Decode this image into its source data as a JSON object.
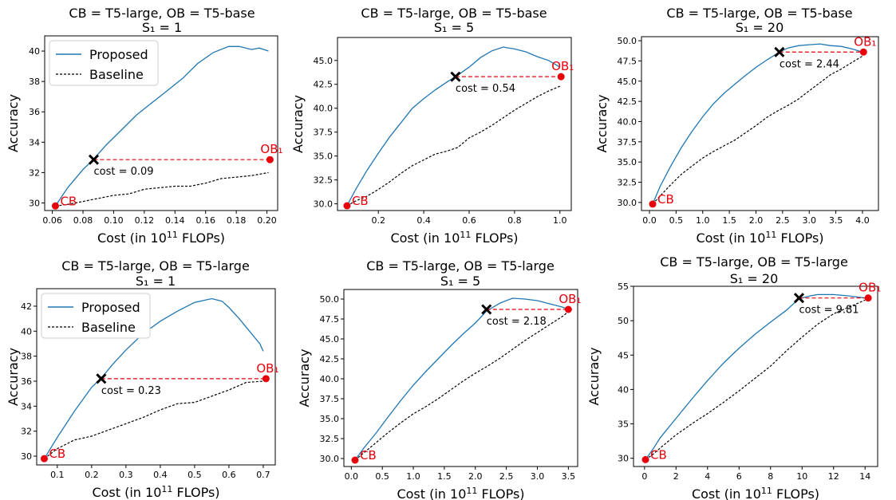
{
  "axis_text": {
    "xlabel_prefix": "Cost (in 10",
    "xlabel_exp": "11",
    "xlabel_suffix": " FLOPs)",
    "ylabel": "Accuracy"
  },
  "legend": {
    "proposed": "Proposed",
    "baseline": "Baseline"
  },
  "labels": {
    "cb": "CB",
    "ob": "OB₁"
  },
  "colors": {
    "proposed": "#1f77b4",
    "baseline": "#000000",
    "highlight": "#e8000b"
  },
  "chart_data": [
    {
      "type": "line",
      "title": "CB = T5-large, OB = T5-base",
      "subtitle": "S₁ = 1",
      "xlim": [
        0.055,
        0.207
      ],
      "ylim": [
        29.5,
        41.0
      ],
      "xticks": [
        0.06,
        0.08,
        0.1,
        0.12,
        0.14,
        0.16,
        0.18,
        0.2
      ],
      "xticklabels": [
        "0.06",
        "0.08",
        "0.10",
        "0.12",
        "0.14",
        "0.16",
        "0.18",
        "0.20"
      ],
      "yticks": [
        30,
        32,
        34,
        36,
        38,
        40
      ],
      "yticklabels": [
        "30",
        "32",
        "34",
        "36",
        "38",
        "40"
      ],
      "legend": true,
      "series": [
        {
          "name": "Proposed",
          "style": "solid",
          "x": [
            0.062,
            0.07,
            0.08,
            0.087,
            0.095,
            0.105,
            0.115,
            0.125,
            0.135,
            0.145,
            0.155,
            0.165,
            0.175,
            0.182,
            0.19,
            0.195,
            0.201
          ],
          "y": [
            29.8,
            31.0,
            32.2,
            32.9,
            33.8,
            34.8,
            35.8,
            36.6,
            37.4,
            38.2,
            39.2,
            39.9,
            40.3,
            40.3,
            40.1,
            40.2,
            40.0
          ]
        },
        {
          "name": "Baseline",
          "style": "dashed",
          "x": [
            0.062,
            0.07,
            0.08,
            0.09,
            0.1,
            0.11,
            0.12,
            0.13,
            0.14,
            0.15,
            0.16,
            0.17,
            0.18,
            0.19,
            0.201
          ],
          "y": [
            29.8,
            29.9,
            30.1,
            30.3,
            30.5,
            30.6,
            30.9,
            31.0,
            31.1,
            31.1,
            31.3,
            31.6,
            31.7,
            31.8,
            32.0
          ]
        }
      ],
      "cb": {
        "x": 0.062,
        "y": 29.8
      },
      "ob": {
        "x": 0.202,
        "y": 32.85
      },
      "cross": {
        "x": 0.087,
        "y": 32.85
      },
      "cost_label": "cost = 0.09"
    },
    {
      "type": "line",
      "title": "CB = T5-large, OB = T5-base",
      "subtitle": "S₁ = 5",
      "xlim": [
        0.02,
        1.05
      ],
      "ylim": [
        29.3,
        47.4
      ],
      "xticks": [
        0.2,
        0.4,
        0.6,
        0.8,
        1.0
      ],
      "xticklabels": [
        "0.2",
        "0.4",
        "0.6",
        "0.8",
        "1.0"
      ],
      "yticks": [
        30.0,
        32.5,
        35.0,
        37.5,
        40.0,
        42.5,
        45.0
      ],
      "yticklabels": [
        "30.0",
        "32.5",
        "35.0",
        "37.5",
        "40.0",
        "42.5",
        "45.0"
      ],
      "legend": false,
      "series": [
        {
          "name": "Proposed",
          "style": "solid",
          "x": [
            0.062,
            0.1,
            0.15,
            0.2,
            0.25,
            0.3,
            0.35,
            0.4,
            0.45,
            0.5,
            0.54,
            0.6,
            0.65,
            0.7,
            0.75,
            0.8,
            0.85,
            0.9,
            0.95,
            1.0
          ],
          "y": [
            29.8,
            31.5,
            33.5,
            35.3,
            37.0,
            38.5,
            40.0,
            41.0,
            41.9,
            42.7,
            43.3,
            44.3,
            45.3,
            46.0,
            46.4,
            46.2,
            45.9,
            45.4,
            45.0,
            44.3
          ]
        },
        {
          "name": "Baseline",
          "style": "dashed",
          "x": [
            0.062,
            0.1,
            0.15,
            0.2,
            0.25,
            0.3,
            0.35,
            0.4,
            0.45,
            0.5,
            0.55,
            0.6,
            0.65,
            0.7,
            0.75,
            0.8,
            0.85,
            0.9,
            0.95,
            1.0
          ],
          "y": [
            29.8,
            30.3,
            30.8,
            31.5,
            32.3,
            33.2,
            34.0,
            34.6,
            35.2,
            35.5,
            35.9,
            36.9,
            37.5,
            38.2,
            39.0,
            39.8,
            40.5,
            41.2,
            41.8,
            42.3
          ]
        }
      ],
      "cb": {
        "x": 0.062,
        "y": 29.8
      },
      "ob": {
        "x": 1.005,
        "y": 43.3
      },
      "cross": {
        "x": 0.54,
        "y": 43.3
      },
      "cost_label": "cost = 0.54"
    },
    {
      "type": "line",
      "title": "CB = T5-large, OB = T5-base",
      "subtitle": "S₁ = 20",
      "xlim": [
        -0.15,
        4.3
      ],
      "ylim": [
        29.0,
        50.5
      ],
      "xticks": [
        0.0,
        0.5,
        1.0,
        1.5,
        2.0,
        2.5,
        3.0,
        3.5,
        4.0
      ],
      "xticklabels": [
        "0.0",
        "0.5",
        "1.0",
        "1.5",
        "2.0",
        "2.5",
        "3.0",
        "3.5",
        "4.0"
      ],
      "yticks": [
        30.0,
        32.5,
        35.0,
        37.5,
        40.0,
        42.5,
        45.0,
        47.5,
        50.0
      ],
      "yticklabels": [
        "30.0",
        "32.5",
        "35.0",
        "37.5",
        "40.0",
        "42.5",
        "45.0",
        "47.5",
        "50.0"
      ],
      "legend": false,
      "series": [
        {
          "name": "Proposed",
          "style": "solid",
          "x": [
            0.06,
            0.2,
            0.4,
            0.6,
            0.8,
            1.0,
            1.2,
            1.4,
            1.6,
            1.8,
            2.0,
            2.2,
            2.44,
            2.6,
            2.8,
            3.0,
            3.2,
            3.4,
            3.6,
            3.8,
            4.0
          ],
          "y": [
            29.8,
            32.0,
            34.5,
            36.8,
            38.8,
            40.6,
            42.2,
            43.5,
            44.6,
            45.7,
            46.7,
            47.6,
            48.6,
            49.1,
            49.4,
            49.5,
            49.6,
            49.4,
            49.3,
            49.0,
            48.6
          ]
        },
        {
          "name": "Baseline",
          "style": "dashed",
          "x": [
            0.06,
            0.2,
            0.4,
            0.6,
            0.8,
            1.0,
            1.2,
            1.4,
            1.6,
            1.8,
            2.0,
            2.2,
            2.4,
            2.6,
            2.8,
            3.0,
            3.2,
            3.4,
            3.6,
            3.8,
            4.0
          ],
          "y": [
            29.8,
            30.8,
            32.2,
            33.5,
            34.5,
            35.5,
            36.3,
            37.0,
            37.7,
            38.6,
            39.5,
            40.5,
            41.3,
            42.0,
            42.8,
            43.8,
            44.8,
            45.8,
            46.5,
            47.3,
            48.1
          ]
        }
      ],
      "cb": {
        "x": 0.06,
        "y": 29.8
      },
      "ob": {
        "x": 4.02,
        "y": 48.6
      },
      "cross": {
        "x": 2.44,
        "y": 48.6
      },
      "cost_label": "cost = 2.44"
    },
    {
      "type": "line",
      "title": "CB = T5-large, OB = T5-large",
      "subtitle": "S₁ = 1",
      "xlim": [
        0.04,
        0.735
      ],
      "ylim": [
        29.3,
        43.4
      ],
      "xticks": [
        0.1,
        0.2,
        0.3,
        0.4,
        0.5,
        0.6,
        0.7
      ],
      "xticklabels": [
        "0.1",
        "0.2",
        "0.3",
        "0.4",
        "0.5",
        "0.6",
        "0.7"
      ],
      "yticks": [
        30,
        32,
        34,
        36,
        38,
        40,
        42
      ],
      "yticklabels": [
        "30",
        "32",
        "34",
        "36",
        "38",
        "40",
        "42"
      ],
      "legend": true,
      "series": [
        {
          "name": "Proposed",
          "style": "solid",
          "x": [
            0.062,
            0.1,
            0.15,
            0.2,
            0.23,
            0.26,
            0.3,
            0.35,
            0.4,
            0.45,
            0.5,
            0.55,
            0.58,
            0.6,
            0.63,
            0.66,
            0.69,
            0.7
          ],
          "y": [
            29.8,
            31.5,
            33.6,
            35.5,
            36.3,
            37.3,
            38.5,
            39.8,
            40.8,
            41.6,
            42.3,
            42.6,
            42.4,
            41.9,
            41.0,
            40.0,
            39.0,
            38.4
          ]
        },
        {
          "name": "Baseline",
          "style": "dashed",
          "x": [
            0.062,
            0.1,
            0.15,
            0.2,
            0.25,
            0.3,
            0.35,
            0.4,
            0.45,
            0.5,
            0.55,
            0.6,
            0.65,
            0.7
          ],
          "y": [
            29.8,
            30.6,
            31.3,
            31.6,
            32.1,
            32.6,
            33.1,
            33.7,
            34.2,
            34.3,
            34.8,
            35.3,
            35.9,
            36.0
          ]
        }
      ],
      "cb": {
        "x": 0.062,
        "y": 29.8
      },
      "ob": {
        "x": 0.708,
        "y": 36.2
      },
      "cross": {
        "x": 0.228,
        "y": 36.2
      },
      "cost_label": "cost = 0.23"
    },
    {
      "type": "line",
      "title": "CB = T5-large, OB = T5-large",
      "subtitle": "S₁ = 5",
      "xlim": [
        -0.12,
        3.65
      ],
      "ylim": [
        29.0,
        51.2
      ],
      "xticks": [
        0.0,
        0.5,
        1.0,
        1.5,
        2.0,
        2.5,
        3.0,
        3.5
      ],
      "xticklabels": [
        "0.0",
        "0.5",
        "1.0",
        "1.5",
        "2.0",
        "2.5",
        "3.0",
        "3.5"
      ],
      "yticks": [
        30.0,
        32.5,
        35.0,
        37.5,
        40.0,
        42.5,
        45.0,
        47.5,
        50.0
      ],
      "yticklabels": [
        "30.0",
        "32.5",
        "35.0",
        "37.5",
        "40.0",
        "42.5",
        "45.0",
        "47.5",
        "50.0"
      ],
      "legend": false,
      "series": [
        {
          "name": "Proposed",
          "style": "solid",
          "x": [
            0.06,
            0.2,
            0.4,
            0.6,
            0.8,
            1.0,
            1.2,
            1.4,
            1.6,
            1.8,
            2.0,
            2.18,
            2.4,
            2.6,
            2.8,
            3.0,
            3.2,
            3.4,
            3.5
          ],
          "y": [
            29.8,
            31.3,
            33.2,
            35.3,
            37.3,
            39.2,
            40.9,
            42.5,
            44.1,
            45.6,
            47.0,
            48.5,
            49.5,
            50.1,
            50.0,
            49.8,
            49.4,
            49.0,
            48.7
          ]
        },
        {
          "name": "Baseline",
          "style": "dashed",
          "x": [
            0.06,
            0.2,
            0.4,
            0.6,
            0.8,
            1.0,
            1.2,
            1.4,
            1.6,
            1.8,
            2.0,
            2.2,
            2.4,
            2.6,
            2.8,
            3.0,
            3.2,
            3.4,
            3.5
          ],
          "y": [
            29.8,
            30.7,
            32.0,
            33.3,
            34.5,
            35.6,
            36.5,
            37.5,
            38.6,
            39.7,
            40.7,
            41.6,
            42.6,
            43.7,
            44.8,
            45.8,
            46.8,
            47.8,
            48.4
          ]
        }
      ],
      "cb": {
        "x": 0.06,
        "y": 29.8
      },
      "ob": {
        "x": 3.5,
        "y": 48.7
      },
      "cross": {
        "x": 2.18,
        "y": 48.7
      },
      "cost_label": "cost = 2.18"
    },
    {
      "type": "line",
      "title": "CB = T5-large, OB = T5-large",
      "subtitle": "S₁ = 20",
      "xlim": [
        -0.7,
        14.8
      ],
      "ylim": [
        28.8,
        55.0
      ],
      "xticks": [
        0,
        2,
        4,
        6,
        8,
        10,
        12,
        14
      ],
      "xticklabels": [
        "0",
        "2",
        "4",
        "6",
        "8",
        "10",
        "12",
        "14"
      ],
      "yticks": [
        30,
        35,
        40,
        45,
        50,
        55
      ],
      "yticklabels": [
        "30",
        "35",
        "40",
        "45",
        "50",
        "55"
      ],
      "legend": false,
      "series": [
        {
          "name": "Proposed",
          "style": "solid",
          "x": [
            0.06,
            0.5,
            1,
            2,
            3,
            4,
            5,
            6,
            7,
            8,
            9,
            9.81,
            10.5,
            11,
            12,
            13,
            14
          ],
          "y": [
            29.8,
            31.2,
            33.0,
            35.8,
            38.6,
            41.3,
            43.8,
            46.0,
            48.0,
            49.8,
            51.5,
            53.2,
            53.6,
            53.8,
            53.8,
            53.6,
            53.3
          ]
        },
        {
          "name": "Baseline",
          "style": "dashed",
          "x": [
            0.06,
            0.5,
            1,
            2,
            3,
            4,
            5,
            6,
            7,
            8,
            9,
            10,
            11,
            12,
            13,
            14
          ],
          "y": [
            29.8,
            30.5,
            31.5,
            33.4,
            35.0,
            36.5,
            38.1,
            39.8,
            41.6,
            43.4,
            45.6,
            47.6,
            49.5,
            51.0,
            52.0,
            53.0
          ]
        }
      ],
      "cb": {
        "x": 0.06,
        "y": 29.8
      },
      "ob": {
        "x": 14.2,
        "y": 53.3
      },
      "cross": {
        "x": 9.81,
        "y": 53.3
      },
      "cost_label": "cost = 9.81"
    }
  ]
}
